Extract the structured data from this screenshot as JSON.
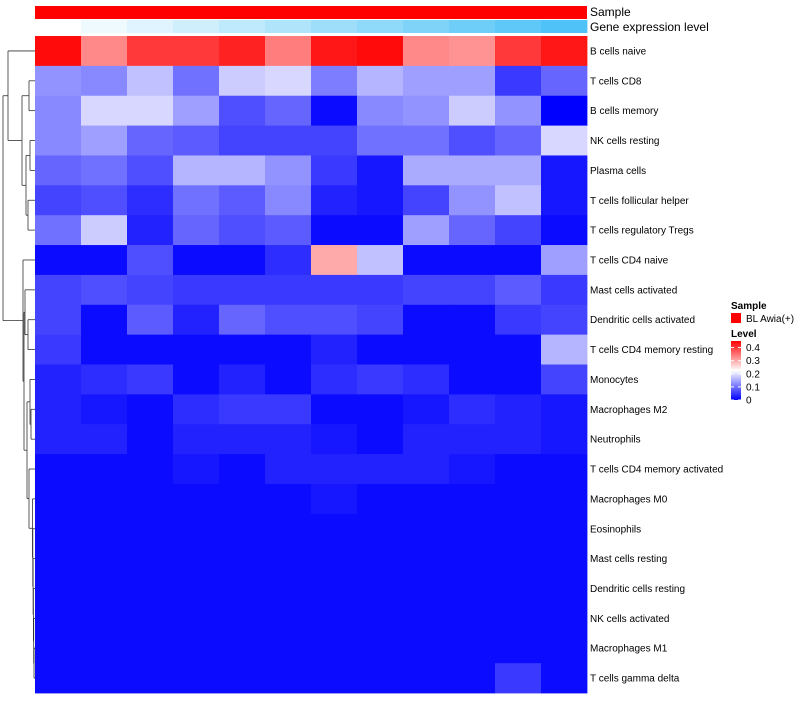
{
  "chart_data": {
    "type": "heatmap",
    "annotations": {
      "sample_label": "Sample",
      "expression_label": "Gene expression level"
    },
    "legend": {
      "sample_title": "Sample",
      "sample_item": "BL Awia(+)",
      "sample_color": "#ff0000",
      "level_title": "Level",
      "level_ticks": [
        "0.4",
        "0.3",
        "0.2",
        "0.1",
        "0"
      ],
      "level_tick_values": [
        0.4,
        0.3,
        0.2,
        0.1,
        0
      ],
      "range": [
        0,
        0.45
      ],
      "colors": {
        "low": "#0000ff",
        "mid": "#ffffff",
        "high": "#ff0000"
      }
    },
    "rows": [
      "B cells naive",
      "T cells CD8",
      "B cells memory",
      "NK cells resting",
      "Plasma cells",
      "T cells follicular helper",
      "T cells regulatory  Tregs",
      "T cells CD4 naive",
      "Mast cells activated",
      "Dendritic cells activated",
      "T cells CD4 memory resting",
      "Monocytes",
      "Macrophages M2",
      "Neutrophils",
      "T cells CD4 memory activated",
      "Macrophages M0",
      "Eosinophils",
      "Mast cells resting",
      "Dendritic cells resting",
      "NK cells activated",
      "Macrophages M1",
      "T cells gamma delta"
    ],
    "expression_levels": [
      0.0,
      0.05,
      0.1,
      0.15,
      0.2,
      0.25,
      0.3,
      0.35,
      0.4,
      0.45,
      0.5,
      0.55
    ],
    "values": [
      [
        0.44,
        0.33,
        0.4,
        0.4,
        0.42,
        0.34,
        0.43,
        0.44,
        0.33,
        0.32,
        0.4,
        0.43
      ],
      [
        0.13,
        0.12,
        0.17,
        0.1,
        0.18,
        0.19,
        0.11,
        0.16,
        0.14,
        0.14,
        0.05,
        0.09
      ],
      [
        0.12,
        0.19,
        0.19,
        0.14,
        0.07,
        0.09,
        0.01,
        0.12,
        0.13,
        0.18,
        0.13,
        0.0
      ],
      [
        0.12,
        0.14,
        0.09,
        0.08,
        0.06,
        0.06,
        0.06,
        0.1,
        0.1,
        0.07,
        0.09,
        0.19
      ],
      [
        0.09,
        0.1,
        0.07,
        0.16,
        0.16,
        0.13,
        0.05,
        0.02,
        0.15,
        0.15,
        0.15,
        0.02
      ],
      [
        0.06,
        0.07,
        0.04,
        0.1,
        0.08,
        0.12,
        0.03,
        0.02,
        0.06,
        0.13,
        0.17,
        0.02
      ],
      [
        0.1,
        0.18,
        0.03,
        0.09,
        0.07,
        0.08,
        0.01,
        0.01,
        0.14,
        0.09,
        0.06,
        0.01
      ],
      [
        0.01,
        0.01,
        0.07,
        0.01,
        0.01,
        0.04,
        0.3,
        0.17,
        0.01,
        0.01,
        0.01,
        0.14
      ],
      [
        0.06,
        0.07,
        0.06,
        0.05,
        0.05,
        0.05,
        0.05,
        0.05,
        0.06,
        0.06,
        0.08,
        0.05
      ],
      [
        0.06,
        0.01,
        0.08,
        0.03,
        0.09,
        0.07,
        0.07,
        0.06,
        0.01,
        0.01,
        0.05,
        0.06
      ],
      [
        0.05,
        0.01,
        0.01,
        0.01,
        0.01,
        0.01,
        0.03,
        0.01,
        0.01,
        0.01,
        0.01,
        0.16
      ],
      [
        0.03,
        0.04,
        0.05,
        0.01,
        0.03,
        0.01,
        0.04,
        0.05,
        0.04,
        0.01,
        0.01,
        0.06
      ],
      [
        0.03,
        0.02,
        0.01,
        0.04,
        0.05,
        0.05,
        0.01,
        0.01,
        0.02,
        0.04,
        0.03,
        0.02
      ],
      [
        0.03,
        0.03,
        0.01,
        0.03,
        0.03,
        0.03,
        0.02,
        0.01,
        0.03,
        0.03,
        0.03,
        0.02
      ],
      [
        0.01,
        0.01,
        0.01,
        0.02,
        0.01,
        0.03,
        0.03,
        0.03,
        0.03,
        0.02,
        0.01,
        0.01
      ],
      [
        0.01,
        0.01,
        0.01,
        0.01,
        0.01,
        0.01,
        0.02,
        0.01,
        0.01,
        0.01,
        0.01,
        0.01
      ],
      [
        0.01,
        0.01,
        0.01,
        0.01,
        0.01,
        0.01,
        0.01,
        0.01,
        0.01,
        0.01,
        0.01,
        0.01
      ],
      [
        0.01,
        0.01,
        0.01,
        0.01,
        0.01,
        0.01,
        0.01,
        0.01,
        0.01,
        0.01,
        0.01,
        0.01
      ],
      [
        0.01,
        0.01,
        0.01,
        0.01,
        0.01,
        0.01,
        0.01,
        0.01,
        0.01,
        0.01,
        0.01,
        0.01
      ],
      [
        0.01,
        0.01,
        0.01,
        0.01,
        0.01,
        0.01,
        0.01,
        0.01,
        0.01,
        0.01,
        0.01,
        0.01
      ],
      [
        0.01,
        0.01,
        0.01,
        0.01,
        0.01,
        0.01,
        0.01,
        0.01,
        0.01,
        0.01,
        0.01,
        0.01
      ],
      [
        0.01,
        0.01,
        0.01,
        0.01,
        0.01,
        0.01,
        0.01,
        0.01,
        0.01,
        0.01,
        0.05,
        0.01
      ]
    ],
    "dendrogram": "row clustering tree, left side",
    "grid": false,
    "legend_position": "right"
  }
}
